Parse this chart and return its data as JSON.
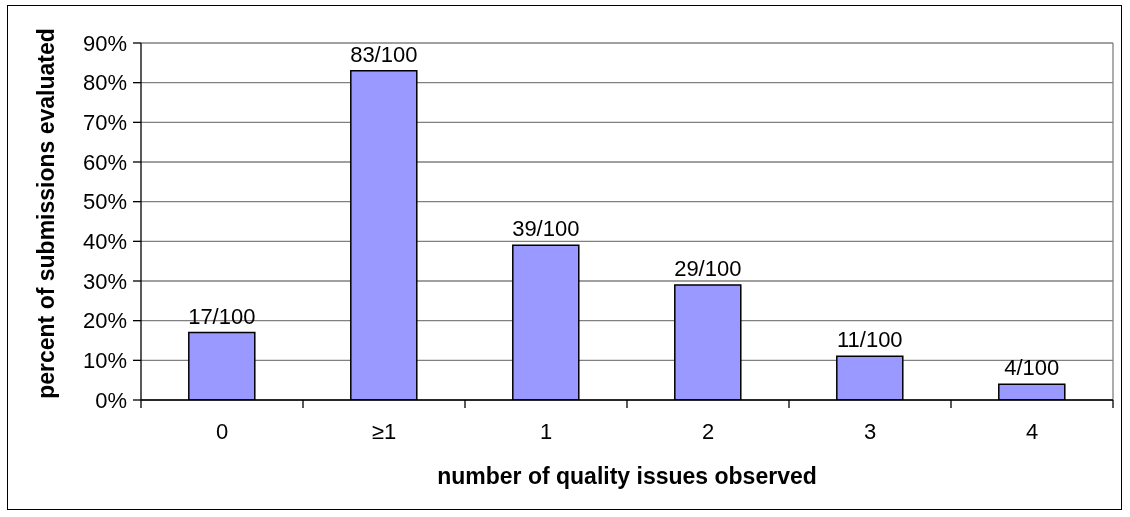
{
  "chart_data": {
    "type": "bar",
    "xlabel": "number of quality issues observed",
    "ylabel": "percent of submissions evaluated",
    "categories": [
      "0",
      "≥1",
      "1",
      "2",
      "3",
      "4"
    ],
    "values": [
      17,
      83,
      39,
      29,
      11,
      4
    ],
    "value_labels": [
      "17/100",
      "83/100",
      "39/100",
      "29/100",
      "11/100",
      "4/100"
    ],
    "color": "#9999ff",
    "ylim": [
      0,
      90
    ],
    "yticks": [
      {
        "value": 0,
        "label": "0%"
      },
      {
        "value": 10,
        "label": "10%"
      },
      {
        "value": 20,
        "label": "20%"
      },
      {
        "value": 30,
        "label": "30%"
      },
      {
        "value": 40,
        "label": "40%"
      },
      {
        "value": 50,
        "label": "50%"
      },
      {
        "value": 60,
        "label": "60%"
      },
      {
        "value": 70,
        "label": "70%"
      },
      {
        "value": 80,
        "label": "80%"
      },
      {
        "value": 90,
        "label": "90%"
      }
    ],
    "grid": "y"
  }
}
